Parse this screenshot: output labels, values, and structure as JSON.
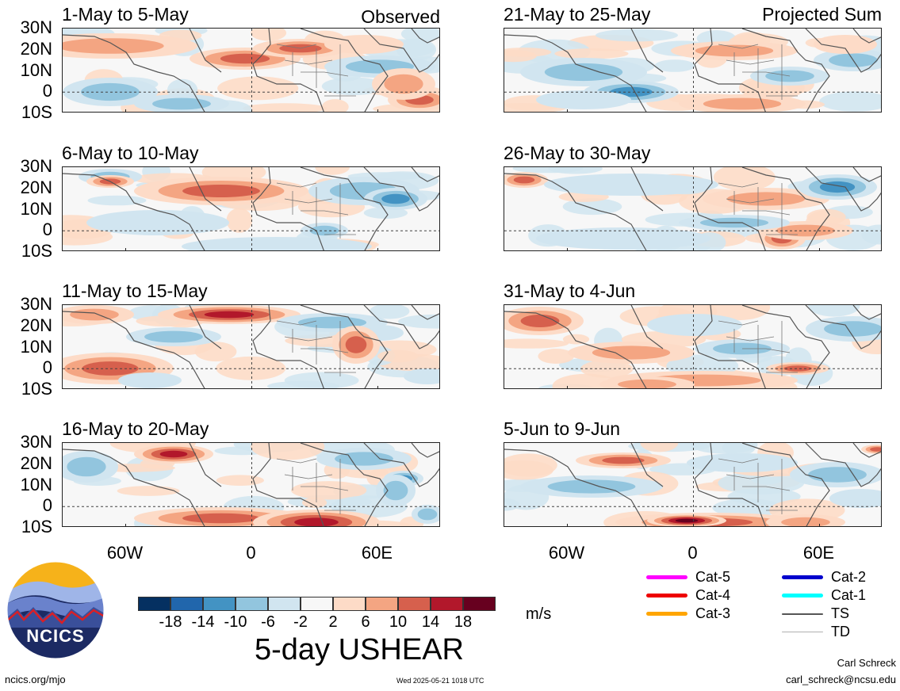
{
  "chart_data": {
    "type": "heatmap",
    "title": "5-day USHEAR",
    "units": "m/s",
    "left_column_tag": "Observed",
    "right_column_tag": "Projected Sum",
    "lat_ticks": [
      "30N",
      "20N",
      "10N",
      "0",
      "10S"
    ],
    "lon_ticks": [
      "60W",
      "0",
      "60E"
    ],
    "lat_range": [
      -10,
      30
    ],
    "lon_range": [
      -90,
      90
    ],
    "panels": [
      {
        "title": "1-May to 5-May",
        "column": "Observed"
      },
      {
        "title": "6-May to 10-May",
        "column": "Observed"
      },
      {
        "title": "11-May to 15-May",
        "column": "Observed"
      },
      {
        "title": "16-May to 20-May",
        "column": "Observed"
      },
      {
        "title": "21-May to 25-May",
        "column": "Projected Sum"
      },
      {
        "title": "26-May to 30-May",
        "column": "Projected Sum"
      },
      {
        "title": "31-May to 4-Jun",
        "column": "Projected Sum"
      },
      {
        "title": "5-Jun to 9-Jun",
        "column": "Projected Sum"
      }
    ],
    "colorbar": {
      "labels": [
        "-18",
        "-14",
        "-10",
        "-6",
        "-2",
        "2",
        "6",
        "10",
        "14",
        "18"
      ],
      "colors": [
        "#053061",
        "#2166ac",
        "#4393c3",
        "#92c5de",
        "#d1e5f0",
        "#f7f7f7",
        "#fddbc7",
        "#f4a582",
        "#d6604d",
        "#b2182b",
        "#67001f"
      ]
    },
    "track_legend": [
      {
        "label": "Cat-5",
        "color": "#ff00ff"
      },
      {
        "label": "Cat-4",
        "color": "#ee0000"
      },
      {
        "label": "Cat-3",
        "color": "#ffa500"
      },
      {
        "label": "Cat-2",
        "color": "#0000cd"
      },
      {
        "label": "Cat-1",
        "color": "#00ffff"
      },
      {
        "label": "TS",
        "color": "#555555"
      },
      {
        "label": "TD",
        "color": "#b0b0b0"
      }
    ]
  },
  "logo": {
    "text": "NCICS"
  },
  "footer": {
    "url": "ncics.org/mjo",
    "timestamp": "Wed 2025-05-21 1018 UTC",
    "author": "Carl Schreck",
    "email": "carl_schreck@ncsu.edu"
  }
}
